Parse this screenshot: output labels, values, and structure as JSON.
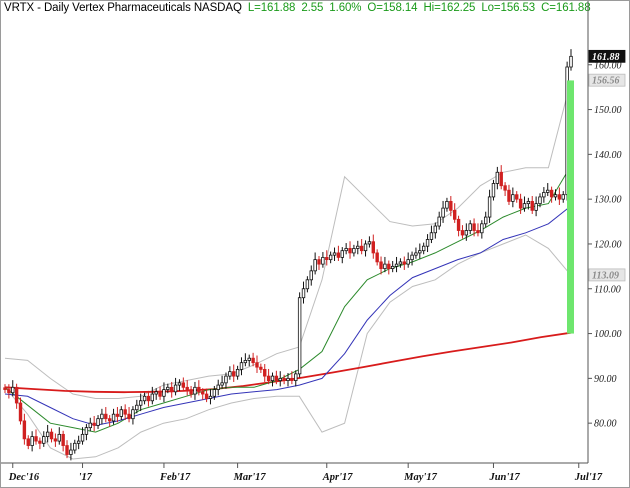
{
  "header": {
    "symbol_line": "VRTX - Daily  Vertex Pharmaceuticals  NASDAQ",
    "last": "L=161.88",
    "change": "2.55",
    "change_pct": "1.60%",
    "open": "O=158.14",
    "high": "Hi=162.25",
    "low": "Lo=156.53",
    "close": "C=161.88"
  },
  "colors": {
    "up_candle": "#111111",
    "down_candle": "#d02020",
    "sma200": "#d81b1b",
    "ema20": "#2c8a2c",
    "sma50": "#3434b8",
    "bollinger": "#bdbdbd",
    "volatility_bar": "#6ee66e",
    "header_values": "#1a9a1a"
  },
  "chart_data": {
    "type": "candlestick",
    "title": "VRTX - Daily  Vertex Pharmaceuticals  NASDAQ",
    "ylim": [
      72,
      172
    ],
    "yticks": [
      80,
      90,
      100,
      110,
      120,
      130,
      140,
      150,
      160
    ],
    "ytick_labels": [
      "80.00",
      "90.00",
      "100.00",
      "110.00",
      "120.00",
      "130.00",
      "140.00",
      "150.00",
      "160.00"
    ],
    "xticks": [
      {
        "label": "Dec'16",
        "index": 2
      },
      {
        "label": "'17",
        "index": 20
      },
      {
        "label": "Feb'17",
        "index": 41
      },
      {
        "label": "Mar'17",
        "index": 60
      },
      {
        "label": "Apr'17",
        "index": 83
      },
      {
        "label": "May'17",
        "index": 104
      },
      {
        "label": "Jun'17",
        "index": 126
      },
      {
        "label": "Jul'17",
        "index": 148
      }
    ],
    "price_labels": [
      {
        "value": 161.88,
        "text": "161.88",
        "style": "last"
      },
      {
        "value": 156.56,
        "text": "156.56",
        "style": "band"
      },
      {
        "value": 113.09,
        "text": "113.09",
        "style": "band"
      }
    ],
    "volatility_bar": {
      "from": 100.0,
      "to": 156.5
    },
    "closes": [
      87.5,
      86.8,
      88.0,
      84.5,
      80.5,
      76.5,
      75.0,
      77.0,
      76.0,
      75.5,
      77.0,
      78.0,
      76.5,
      76.0,
      77.5,
      75.0,
      73.0,
      74.0,
      75.5,
      76.0,
      77.5,
      79.0,
      80.0,
      79.5,
      81.0,
      82.0,
      81.0,
      80.5,
      82.0,
      81.5,
      83.0,
      82.0,
      81.0,
      83.0,
      84.0,
      85.0,
      86.0,
      85.0,
      86.5,
      87.0,
      86.0,
      87.5,
      88.0,
      87.0,
      88.5,
      89.0,
      88.0,
      87.5,
      86.5,
      88.0,
      87.0,
      86.5,
      85.5,
      86.0,
      87.5,
      88.5,
      89.0,
      90.5,
      91.5,
      90.5,
      92.0,
      93.5,
      94.0,
      94.5,
      93.5,
      92.5,
      92.0,
      90.5,
      89.5,
      90.5,
      89.5,
      90.0,
      89.5,
      90.0,
      89.5,
      91.0,
      108.0,
      110.0,
      112.0,
      114.0,
      116.5,
      115.5,
      117.0,
      116.5,
      117.5,
      118.0,
      117.0,
      118.5,
      119.0,
      118.0,
      119.0,
      119.5,
      118.5,
      120.0,
      120.5,
      118.0,
      116.0,
      114.5,
      115.5,
      114.5,
      115.0,
      115.5,
      116.0,
      115.5,
      116.5,
      117.5,
      118.0,
      118.5,
      119.5,
      121.0,
      122.5,
      124.0,
      126.0,
      128.0,
      129.5,
      127.5,
      125.5,
      123.0,
      122.0,
      123.0,
      124.5,
      123.0,
      122.5,
      124.5,
      126.0,
      130.5,
      133.5,
      136.0,
      133.0,
      132.0,
      129.5,
      131.0,
      130.0,
      128.0,
      129.0,
      129.5,
      127.5,
      129.0,
      130.5,
      131.5,
      132.0,
      130.5,
      131.0,
      130.0,
      131.0,
      159.5,
      161.88
    ],
    "series": [
      {
        "name": "",
        "kind": "sma200",
        "start": 0,
        "values": [
          88.0,
          87.6,
          87.2,
          87.0,
          86.9,
          87.0,
          87.2,
          87.6,
          88.3,
          89.2,
          90.2,
          91.3,
          92.5,
          93.7,
          94.9,
          96.0,
          97.0,
          98.0,
          99.2,
          100.2
        ]
      },
      {
        "name": "",
        "kind": "ema20",
        "start": 0,
        "values": [
          88.0,
          84.0,
          80.0,
          79.0,
          78.0,
          80.0,
          83.0,
          84.5,
          86.0,
          87.5,
          88.0,
          88.0,
          89.5,
          92.0,
          96.0,
          106.0,
          112.0,
          114.5,
          116.0,
          118.0,
          120.5,
          123.0,
          126.0,
          128.0,
          129.0,
          137.5
        ]
      },
      {
        "name": "",
        "kind": "sma50",
        "start": 0,
        "values": [
          86.5,
          86.0,
          83.5,
          81.0,
          79.5,
          80.5,
          82.0,
          83.5,
          84.5,
          85.5,
          86.5,
          87.0,
          87.5,
          88.5,
          90.0,
          95.5,
          103.0,
          108.5,
          112.5,
          114.5,
          116.5,
          118.0,
          121.0,
          122.5,
          124.5,
          128.5
        ]
      },
      {
        "name": "",
        "kind": "bollinger-upper",
        "start": 0,
        "values": [
          94.5,
          94.0,
          90.0,
          86.5,
          85.5,
          85.5,
          86.0,
          88.5,
          89.5,
          90.5,
          91.0,
          93.0,
          95.5,
          97.0,
          112.0,
          135.0,
          130.0,
          125.0,
          124.0,
          124.5,
          128.0,
          133.0,
          136.0,
          137.0,
          137.0,
          156.5
        ]
      },
      {
        "name": "",
        "kind": "bollinger-lower",
        "start": 0,
        "values": [
          88.0,
          82.0,
          74.5,
          72.0,
          72.5,
          74.5,
          78.0,
          80.0,
          81.0,
          83.0,
          84.5,
          85.5,
          86.0,
          86.0,
          78.0,
          80.0,
          100.0,
          107.0,
          110.5,
          112.0,
          115.5,
          118.0,
          120.0,
          122.0,
          119.0,
          113.0
        ]
      }
    ]
  }
}
